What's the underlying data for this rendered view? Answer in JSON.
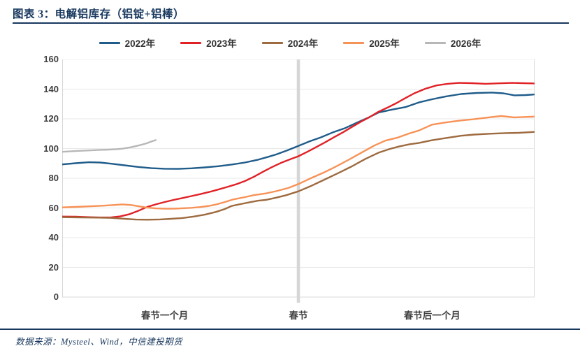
{
  "header": {
    "title": "图表 3：电解铝库存（铝锭+铝棒）"
  },
  "footer": {
    "source": "数据来源：Mysteel、Wind，中信建投期货"
  },
  "colors": {
    "accent_navy": "#17375e",
    "grid": "#e8e8e8",
    "axis": "#d9d9d9",
    "event_line": "#d6d6d6",
    "tick_text": "#3f3f3f"
  },
  "chart_data": {
    "type": "line",
    "title": "电解铝库存（铝锭+铝棒）",
    "grid": true,
    "legend_position": "top",
    "x_axis": {
      "unit": "days relative to Spring Festival",
      "range": [
        -53,
        53
      ],
      "tick_labels": [
        {
          "label": "春节一个月",
          "day": -30
        },
        {
          "label": "春节",
          "day": 0
        },
        {
          "label": "春节后一个月",
          "day": 30
        }
      ]
    },
    "y_axis": {
      "range": [
        0,
        160
      ],
      "step": 20,
      "ticks": [
        0,
        20,
        40,
        60,
        80,
        100,
        120,
        140,
        160
      ]
    },
    "event_line": {
      "label": "春节",
      "day": 0
    },
    "series": [
      {
        "name": "2022年",
        "color": "#1f5c8a",
        "points": [
          [
            -53,
            89.3
          ],
          [
            -50,
            90.1
          ],
          [
            -47,
            90.8
          ],
          [
            -44.5,
            90.6
          ],
          [
            -42,
            89.8
          ],
          [
            -39,
            88.7
          ],
          [
            -36,
            87.6
          ],
          [
            -33,
            86.8
          ],
          [
            -30,
            86.4
          ],
          [
            -27,
            86.3
          ],
          [
            -24,
            86.7
          ],
          [
            -21,
            87.3
          ],
          [
            -18,
            88.1
          ],
          [
            -15,
            89.2
          ],
          [
            -12,
            90.6
          ],
          [
            -9,
            92.5
          ],
          [
            -7,
            94.2
          ],
          [
            -5,
            96
          ],
          [
            -2.5,
            98.8
          ],
          [
            0,
            101.8
          ],
          [
            2.5,
            104.8
          ],
          [
            5,
            107.5
          ],
          [
            8,
            111.2
          ],
          [
            10.5,
            113.8
          ],
          [
            13,
            117.2
          ],
          [
            15.5,
            120.5
          ],
          [
            18,
            124.3
          ],
          [
            21,
            126.2
          ],
          [
            24,
            127.9
          ],
          [
            27,
            131
          ],
          [
            30,
            133.2
          ],
          [
            33,
            135
          ],
          [
            36.5,
            136.7
          ],
          [
            40,
            137.4
          ],
          [
            43.5,
            137.7
          ],
          [
            46,
            137.2
          ],
          [
            48.5,
            135.8
          ],
          [
            51,
            136
          ],
          [
            53,
            136.4
          ]
        ]
      },
      {
        "name": "2023年",
        "color": "#e02227",
        "points": [
          [
            -53,
            54.2
          ],
          [
            -50,
            54.1
          ],
          [
            -47,
            53.8
          ],
          [
            -44.5,
            53.6
          ],
          [
            -42,
            53.7
          ],
          [
            -40,
            54.3
          ],
          [
            -38,
            55.7
          ],
          [
            -36,
            58
          ],
          [
            -34,
            60.6
          ],
          [
            -32,
            62.4
          ],
          [
            -30,
            64
          ],
          [
            -28,
            65.4
          ],
          [
            -26,
            66.7
          ],
          [
            -24,
            68
          ],
          [
            -22,
            69.3
          ],
          [
            -20,
            70.8
          ],
          [
            -18,
            72.4
          ],
          [
            -16,
            74.1
          ],
          [
            -14,
            75.9
          ],
          [
            -12,
            78.1
          ],
          [
            -10,
            81
          ],
          [
            -8,
            84.3
          ],
          [
            -6,
            87.4
          ],
          [
            -4,
            90.2
          ],
          [
            -2,
            92.6
          ],
          [
            0,
            94.8
          ],
          [
            2,
            97.8
          ],
          [
            4,
            101
          ],
          [
            6,
            104.2
          ],
          [
            8,
            107.6
          ],
          [
            10,
            110.9
          ],
          [
            12,
            114.5
          ],
          [
            14,
            118
          ],
          [
            16,
            121.2
          ],
          [
            18,
            124.8
          ],
          [
            20,
            127.6
          ],
          [
            22,
            130.6
          ],
          [
            24,
            134
          ],
          [
            26,
            137.2
          ],
          [
            28.5,
            140.3
          ],
          [
            31,
            142.5
          ],
          [
            33.5,
            143.6
          ],
          [
            36,
            144.2
          ],
          [
            39,
            144
          ],
          [
            42,
            143.6
          ],
          [
            45,
            143.9
          ],
          [
            48,
            144.2
          ],
          [
            50.5,
            144
          ],
          [
            53,
            143.8
          ]
        ]
      },
      {
        "name": "2024年",
        "color": "#9e6a3f",
        "points": [
          [
            -53,
            53.8
          ],
          [
            -49,
            53.6
          ],
          [
            -45,
            53.5
          ],
          [
            -42,
            53.3
          ],
          [
            -39,
            52.7
          ],
          [
            -36.5,
            52.2
          ],
          [
            -34,
            52.1
          ],
          [
            -31,
            52.3
          ],
          [
            -28.5,
            52.7
          ],
          [
            -26,
            53.2
          ],
          [
            -23.5,
            54.2
          ],
          [
            -21,
            55.5
          ],
          [
            -18.5,
            57.3
          ],
          [
            -16.5,
            59.3
          ],
          [
            -15,
            61.3
          ],
          [
            -13,
            62.6
          ],
          [
            -11,
            63.8
          ],
          [
            -9,
            64.9
          ],
          [
            -7.3,
            65.4
          ],
          [
            -5,
            66.9
          ],
          [
            -2.7,
            68.6
          ],
          [
            0,
            71.2
          ],
          [
            3,
            75
          ],
          [
            6,
            79.3
          ],
          [
            9,
            83.6
          ],
          [
            12,
            88
          ],
          [
            15,
            93
          ],
          [
            18,
            97.2
          ],
          [
            20.5,
            99.7
          ],
          [
            22.5,
            101.3
          ],
          [
            25,
            102.9
          ],
          [
            27,
            103.7
          ],
          [
            30,
            105.6
          ],
          [
            33,
            107
          ],
          [
            36.5,
            108.6
          ],
          [
            39.5,
            109.4
          ],
          [
            43,
            110
          ],
          [
            46.5,
            110.4
          ],
          [
            49.5,
            110.6
          ],
          [
            53,
            111.2
          ]
        ]
      },
      {
        "name": "2025年",
        "color": "#f79257",
        "points": [
          [
            -53,
            60.4
          ],
          [
            -50,
            60.7
          ],
          [
            -47,
            61.1
          ],
          [
            -44,
            61.5
          ],
          [
            -41.5,
            62
          ],
          [
            -39.5,
            62.4
          ],
          [
            -37.5,
            62
          ],
          [
            -35.5,
            61
          ],
          [
            -34,
            60.3
          ],
          [
            -32,
            59.7
          ],
          [
            -30,
            59.5
          ],
          [
            -28,
            59.5
          ],
          [
            -26,
            59.8
          ],
          [
            -24,
            60.1
          ],
          [
            -22,
            60.6
          ],
          [
            -20,
            61.4
          ],
          [
            -18.5,
            62.3
          ],
          [
            -16.5,
            64
          ],
          [
            -14.8,
            65.6
          ],
          [
            -12,
            67.3
          ],
          [
            -10,
            68.6
          ],
          [
            -7.3,
            69.8
          ],
          [
            -5,
            71.3
          ],
          [
            -2.3,
            73.4
          ],
          [
            0,
            76.1
          ],
          [
            3,
            80.3
          ],
          [
            5.5,
            83.6
          ],
          [
            8,
            87.2
          ],
          [
            11,
            92
          ],
          [
            14,
            97
          ],
          [
            17,
            102
          ],
          [
            19.5,
            105.3
          ],
          [
            22.3,
            107.4
          ],
          [
            25,
            110.3
          ],
          [
            27,
            112.1
          ],
          [
            30,
            116.1
          ],
          [
            33.3,
            117.7
          ],
          [
            36.5,
            118.9
          ],
          [
            39.5,
            119.8
          ],
          [
            42.7,
            121
          ],
          [
            45.5,
            121.9
          ],
          [
            48.4,
            121
          ],
          [
            50.5,
            121.2
          ],
          [
            53,
            121.5
          ]
        ]
      },
      {
        "name": "2026年",
        "color": "#b7b7b7",
        "points": [
          [
            -53,
            97.8
          ],
          [
            -50,
            98.3
          ],
          [
            -47.5,
            98.7
          ],
          [
            -45,
            99
          ],
          [
            -43,
            99.2
          ],
          [
            -41,
            99.5
          ],
          [
            -39.5,
            99.9
          ],
          [
            -37.5,
            100.9
          ],
          [
            -35.5,
            102.3
          ],
          [
            -34,
            103.6
          ],
          [
            -33,
            104.7
          ],
          [
            -32.3,
            105.4
          ],
          [
            -32,
            105.7
          ]
        ]
      }
    ]
  }
}
